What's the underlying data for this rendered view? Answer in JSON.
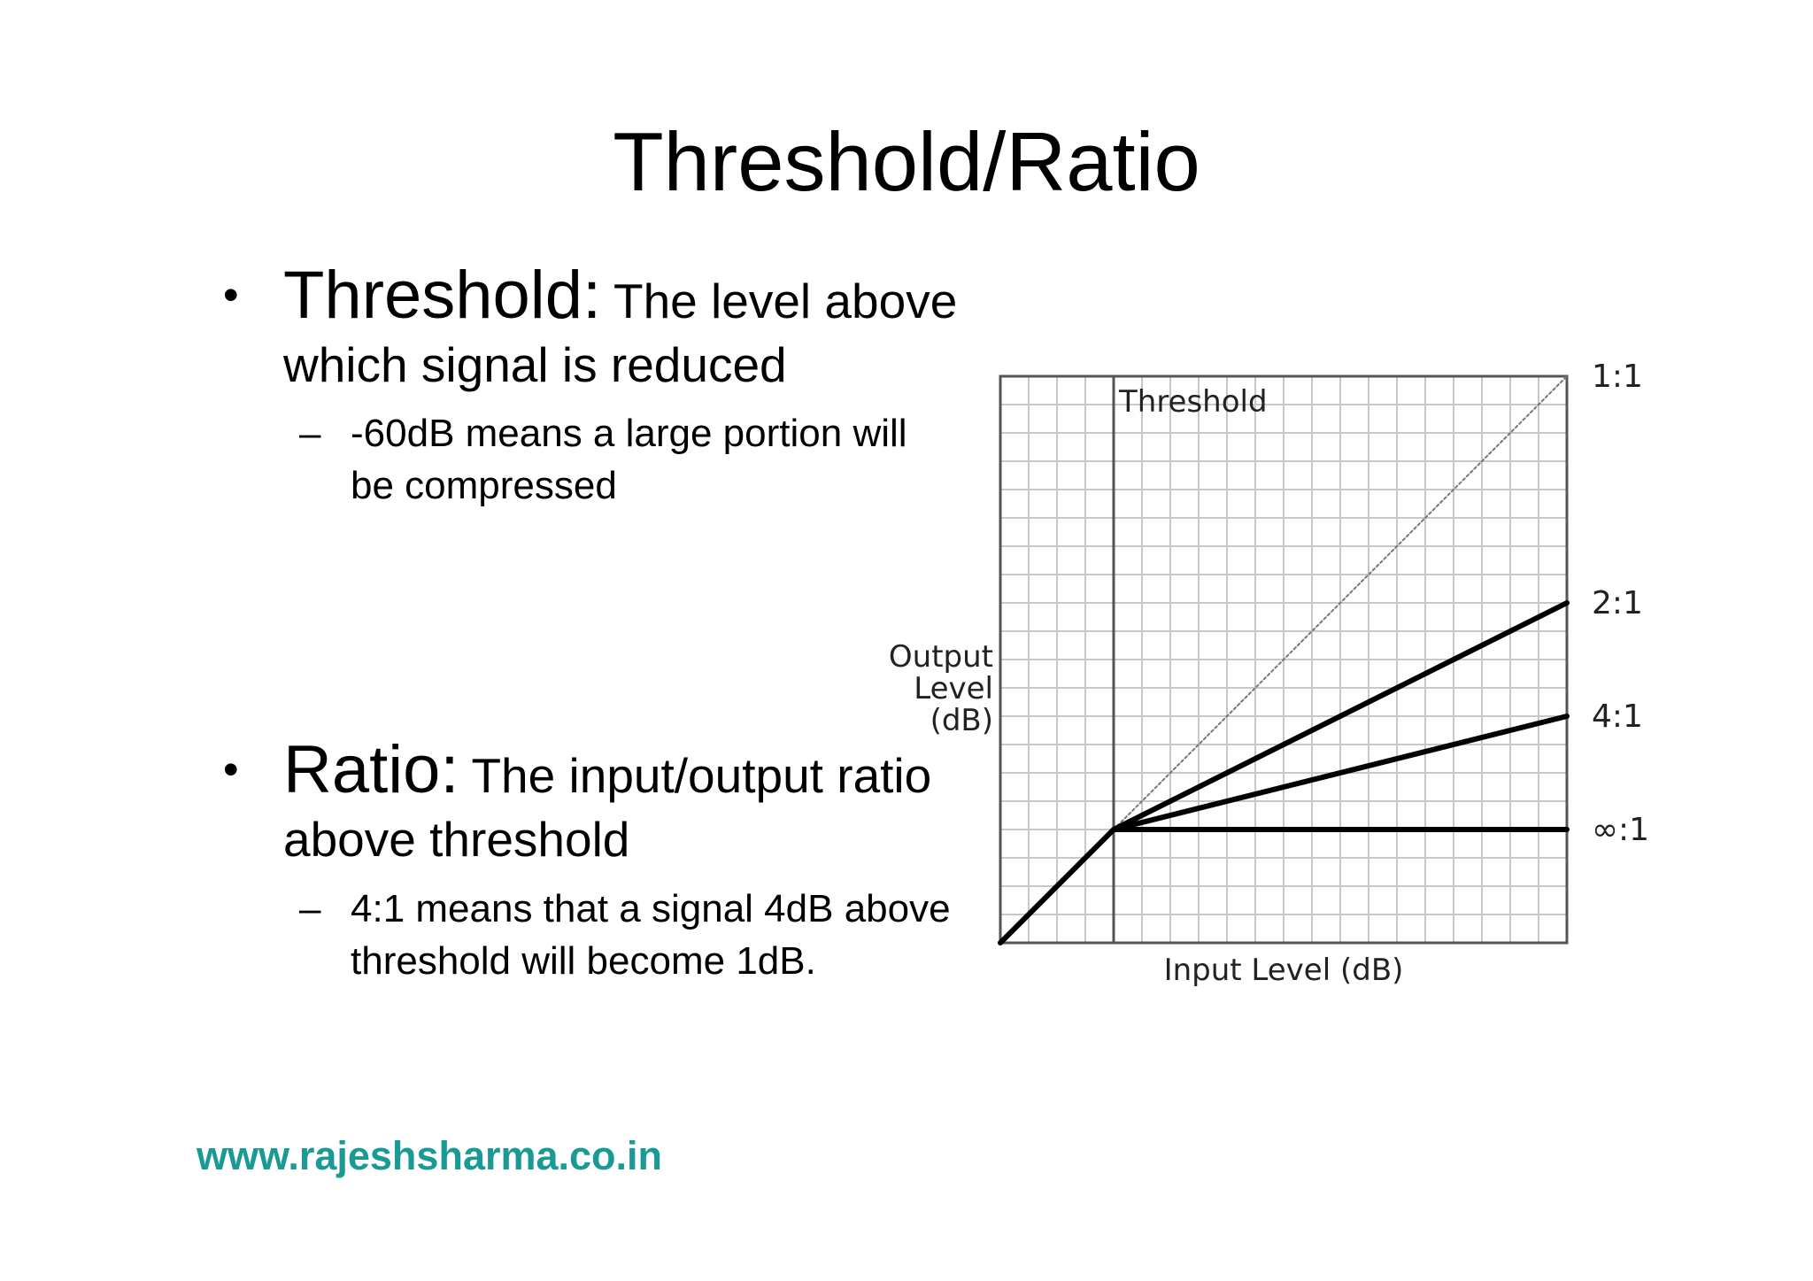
{
  "slide": {
    "title": "Threshold/Ratio",
    "footer_url": "www.rajeshsharma.co.in"
  },
  "bullets": [
    {
      "term": "Threshold:",
      "desc_line1": "The level above",
      "desc_line2": "which signal is reduced",
      "sub_dash": "–",
      "sub_line1": "-60dB means a large portion will",
      "sub_line2": "be compressed"
    },
    {
      "term": "Ratio:",
      "desc_line1": "The input/output ratio",
      "desc_line2": "above threshold",
      "sub_dash": "–",
      "sub_line1": "4:1 means that a signal 4dB above",
      "sub_line2": "threshold will become 1dB."
    }
  ],
  "bullet_glyph": "•",
  "colors": {
    "footer": "#1a9a94",
    "grid": "#c8c8c8",
    "axes": "#555555",
    "curves": "#000000"
  },
  "chart_data": {
    "type": "line",
    "threshold_label": "Threshold",
    "ylabel_lines": [
      "Output",
      "Level",
      "(dB)"
    ],
    "xlabel": "Input Level (dB)",
    "grid": true,
    "xlim": [
      0,
      10
    ],
    "ylim": [
      0,
      10
    ],
    "threshold": 2,
    "series": [
      {
        "name": "1:1",
        "style": "dotted",
        "x": [
          2,
          10
        ],
        "y": [
          2,
          10
        ]
      },
      {
        "name": "2:1",
        "style": "solid",
        "x": [
          2,
          10
        ],
        "y": [
          2,
          6
        ]
      },
      {
        "name": "4:1",
        "style": "solid",
        "x": [
          2,
          10
        ],
        "y": [
          2,
          4
        ]
      },
      {
        "name": "∞:1",
        "style": "solid",
        "x": [
          2,
          10
        ],
        "y": [
          2,
          2
        ]
      }
    ],
    "below_threshold": {
      "x": [
        0,
        2
      ],
      "y": [
        0,
        2
      ]
    }
  }
}
